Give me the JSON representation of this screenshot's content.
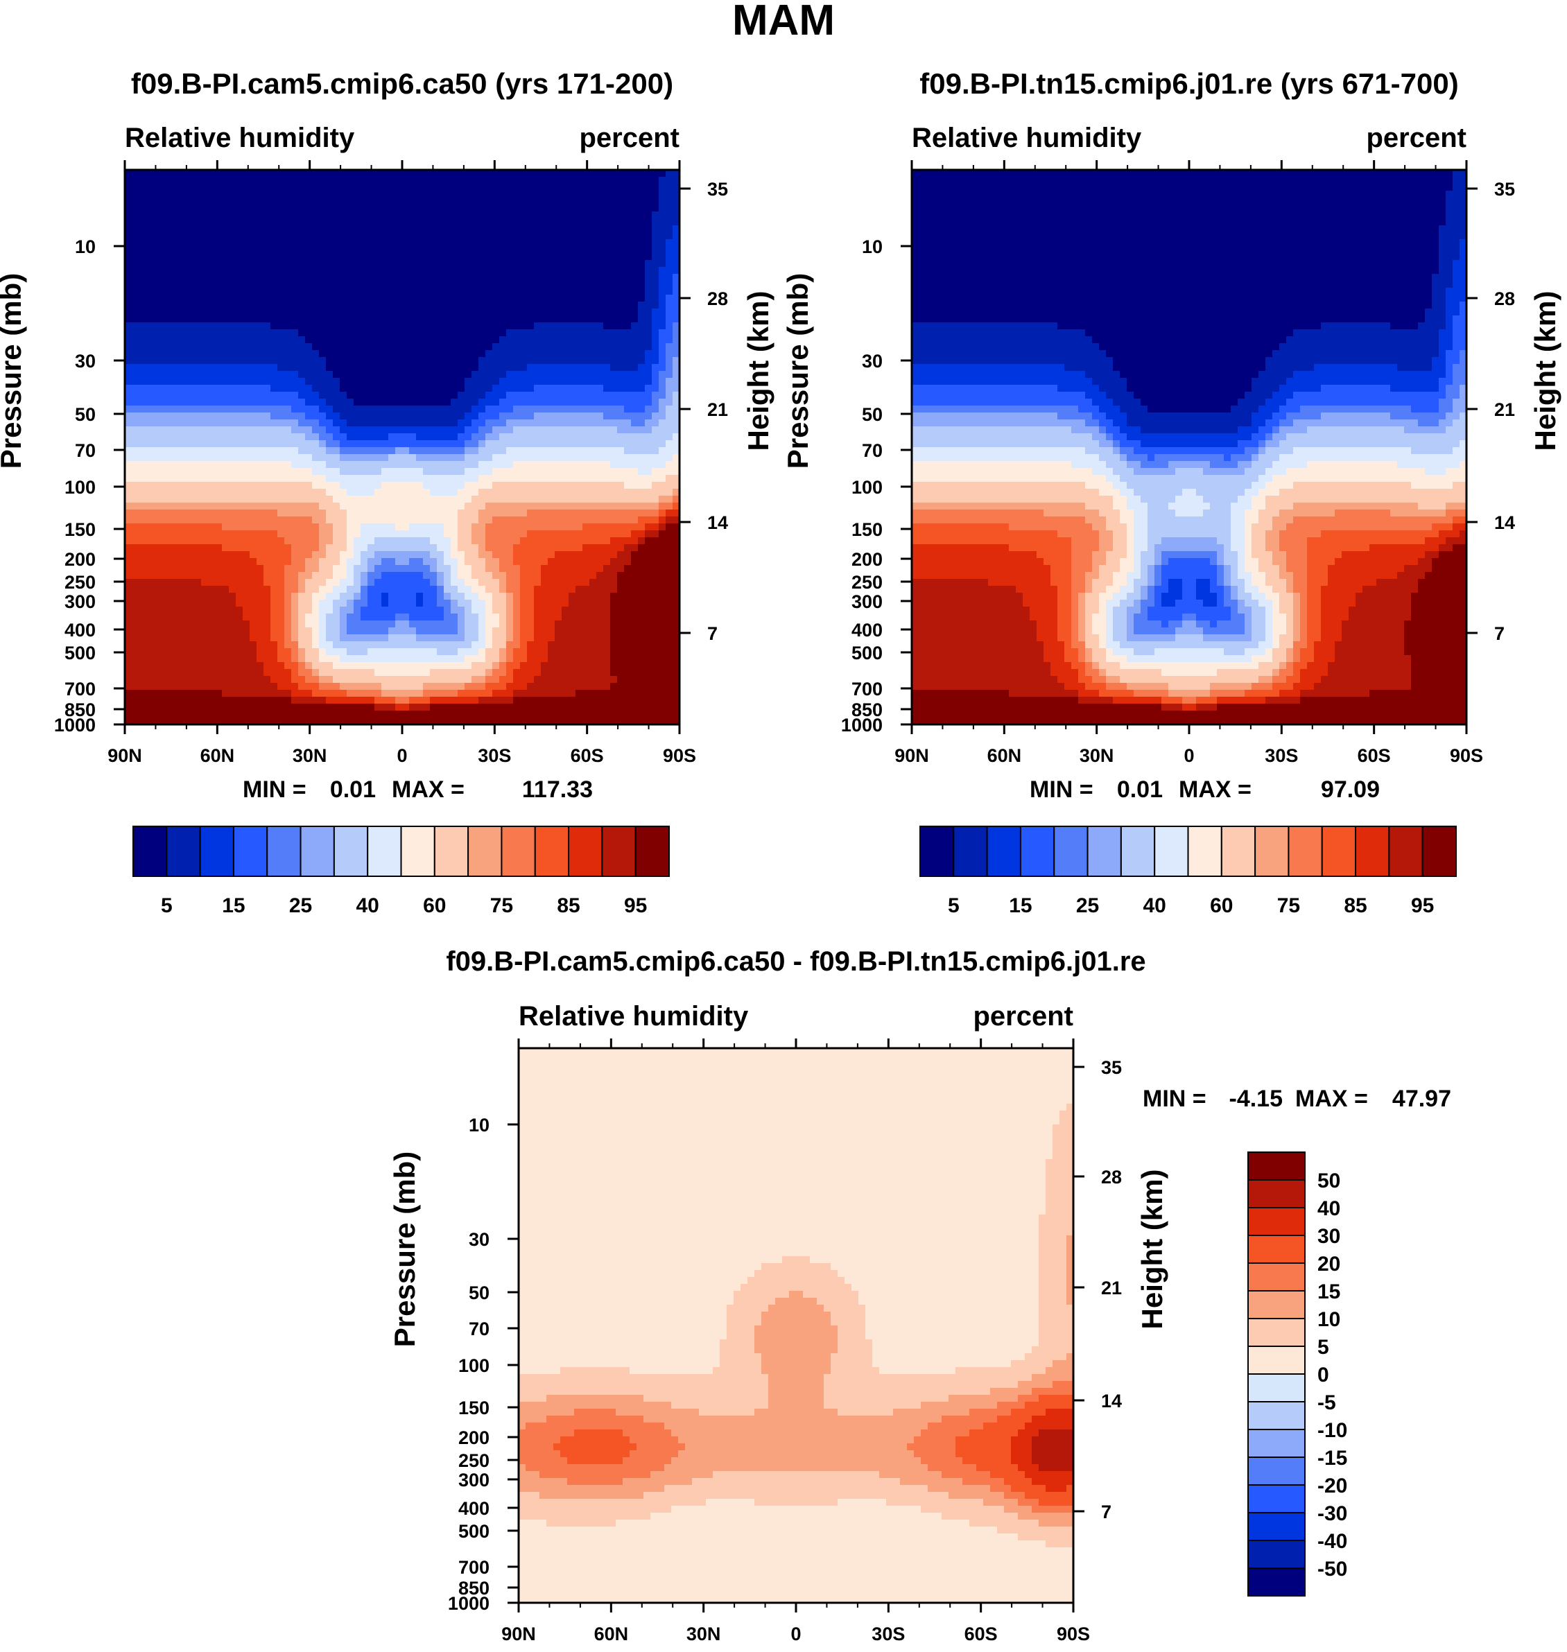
{
  "figure_title": "MAM",
  "colors": {
    "humidity_palette": [
      "#00007f",
      "#0021b0",
      "#0036e0",
      "#2659ff",
      "#547ef9",
      "#8ca9fa",
      "#b5cbfa",
      "#dde9fc",
      "#feeddf",
      "#fccbb1",
      "#f9a27e",
      "#f9794f",
      "#f55524",
      "#e02b0a",
      "#b51708",
      "#800000"
    ],
    "diff_palette": [
      "#00007f",
      "#0021b0",
      "#0036e0",
      "#2659ff",
      "#547ef9",
      "#8ca9fa",
      "#b5cbfa",
      "#d6e6fb",
      "#fde8d8",
      "#fccbb1",
      "#f9a27e",
      "#f9794f",
      "#f55524",
      "#e02b0a",
      "#b51708",
      "#800000"
    ]
  },
  "chart_data": [
    {
      "type": "heatmap",
      "title": "f09.B-PI.cam5.cmip6.ca50 (yrs 171-200)",
      "left_string": "Relative humidity",
      "right_string": "percent",
      "ylabel": "Pressure (mb)",
      "y2label": "Height (km)",
      "xticks": [
        "90N",
        "60N",
        "30N",
        "0",
        "30S",
        "60S",
        "90S"
      ],
      "yticks": [
        "10",
        "30",
        "50",
        "70",
        "100",
        "150",
        "200",
        "250",
        "300",
        "400",
        "500",
        "700",
        "850",
        "1000"
      ],
      "y2ticks": [
        "35",
        "28",
        "21",
        "14",
        "7"
      ],
      "stats": {
        "min_label": "MIN =",
        "min": "0.01",
        "max_label": "MAX =",
        "max": "117.33"
      },
      "min": 0.01,
      "max": 117.33,
      "colorbar_labels": [
        "5",
        "15",
        "25",
        "40",
        "60",
        "75",
        "85",
        "95"
      ],
      "levels": [
        5,
        10,
        15,
        20,
        25,
        30,
        40,
        50,
        60,
        70,
        75,
        80,
        85,
        90,
        95
      ]
    },
    {
      "type": "heatmap",
      "title": "f09.B-PI.tn15.cmip6.j01.re (yrs 671-700)",
      "left_string": "Relative humidity",
      "right_string": "percent",
      "ylabel": "Pressure (mb)",
      "y2label": "Height (km)",
      "xticks": [
        "90N",
        "60N",
        "30N",
        "0",
        "30S",
        "60S",
        "90S"
      ],
      "yticks": [
        "10",
        "30",
        "50",
        "70",
        "100",
        "150",
        "200",
        "250",
        "300",
        "400",
        "500",
        "700",
        "850",
        "1000"
      ],
      "y2ticks": [
        "35",
        "28",
        "21",
        "14",
        "7"
      ],
      "stats": {
        "min_label": "MIN =",
        "min": "0.01",
        "max_label": "MAX =",
        "max": "97.09"
      },
      "min": 0.01,
      "max": 97.09,
      "colorbar_labels": [
        "5",
        "15",
        "25",
        "40",
        "60",
        "75",
        "85",
        "95"
      ],
      "levels": [
        5,
        10,
        15,
        20,
        25,
        30,
        40,
        50,
        60,
        70,
        75,
        80,
        85,
        90,
        95
      ]
    },
    {
      "type": "heatmap",
      "title": "f09.B-PI.cam5.cmip6.ca50 - f09.B-PI.tn15.cmip6.j01.re",
      "left_string": "Relative humidity",
      "right_string": "percent",
      "ylabel": "Pressure (mb)",
      "y2label": "Height (km)",
      "xticks": [
        "90N",
        "60N",
        "30N",
        "0",
        "30S",
        "60S",
        "90S"
      ],
      "yticks": [
        "10",
        "30",
        "50",
        "70",
        "100",
        "150",
        "200",
        "250",
        "300",
        "400",
        "500",
        "700",
        "850",
        "1000"
      ],
      "y2ticks": [
        "35",
        "28",
        "21",
        "14",
        "7"
      ],
      "stats": {
        "min_label": "MIN =",
        "min": "-4.15",
        "max_label": "MAX =",
        "max": "47.97"
      },
      "min": -4.15,
      "max": 47.97,
      "colorbar_labels": [
        "50",
        "40",
        "30",
        "20",
        "15",
        "10",
        "5",
        "0",
        "-5",
        "-10",
        "-15",
        "-20",
        "-30",
        "-40",
        "-50"
      ],
      "levels": [
        -50,
        -40,
        -30,
        -20,
        -15,
        -10,
        -5,
        0,
        5,
        10,
        15,
        20,
        30,
        40,
        50
      ]
    }
  ]
}
